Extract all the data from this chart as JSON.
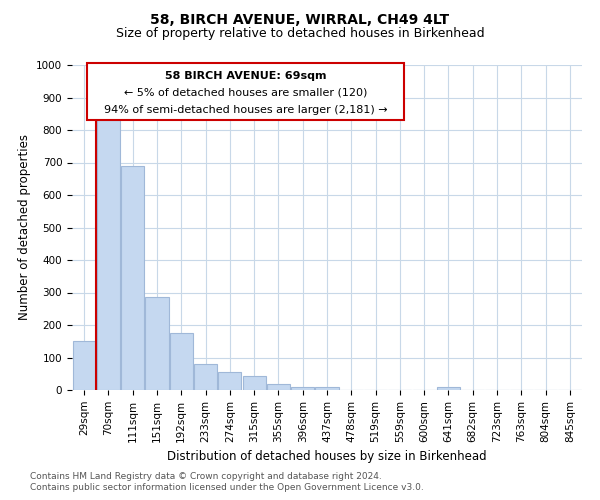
{
  "title": "58, BIRCH AVENUE, WIRRAL, CH49 4LT",
  "subtitle": "Size of property relative to detached houses in Birkenhead",
  "xlabel": "Distribution of detached houses by size in Birkenhead",
  "ylabel": "Number of detached properties",
  "bar_color": "#c5d8f0",
  "bar_edge_color": "#a0b8d8",
  "background_color": "#ffffff",
  "grid_color": "#c8d8e8",
  "categories": [
    "29sqm",
    "70sqm",
    "111sqm",
    "151sqm",
    "192sqm",
    "233sqm",
    "274sqm",
    "315sqm",
    "355sqm",
    "396sqm",
    "437sqm",
    "478sqm",
    "519sqm",
    "559sqm",
    "600sqm",
    "641sqm",
    "682sqm",
    "723sqm",
    "763sqm",
    "804sqm",
    "845sqm"
  ],
  "values": [
    150,
    830,
    690,
    285,
    175,
    80,
    55,
    43,
    20,
    10,
    8,
    0,
    0,
    0,
    0,
    10,
    0,
    0,
    0,
    0,
    0
  ],
  "ylim": [
    0,
    1000
  ],
  "yticks": [
    0,
    100,
    200,
    300,
    400,
    500,
    600,
    700,
    800,
    900,
    1000
  ],
  "annotation_text_line1": "58 BIRCH AVENUE: 69sqm",
  "annotation_text_line2": "← 5% of detached houses are smaller (120)",
  "annotation_text_line3": "94% of semi-detached houses are larger (2,181) →",
  "annotation_box_color": "#ffffff",
  "annotation_box_edge_color": "#cc0000",
  "red_line_color": "#cc0000",
  "footer_line1": "Contains HM Land Registry data © Crown copyright and database right 2024.",
  "footer_line2": "Contains public sector information licensed under the Open Government Licence v3.0.",
  "title_fontsize": 10,
  "subtitle_fontsize": 9,
  "axis_label_fontsize": 8.5,
  "tick_fontsize": 7.5,
  "annotation_fontsize": 8,
  "footer_fontsize": 6.5
}
